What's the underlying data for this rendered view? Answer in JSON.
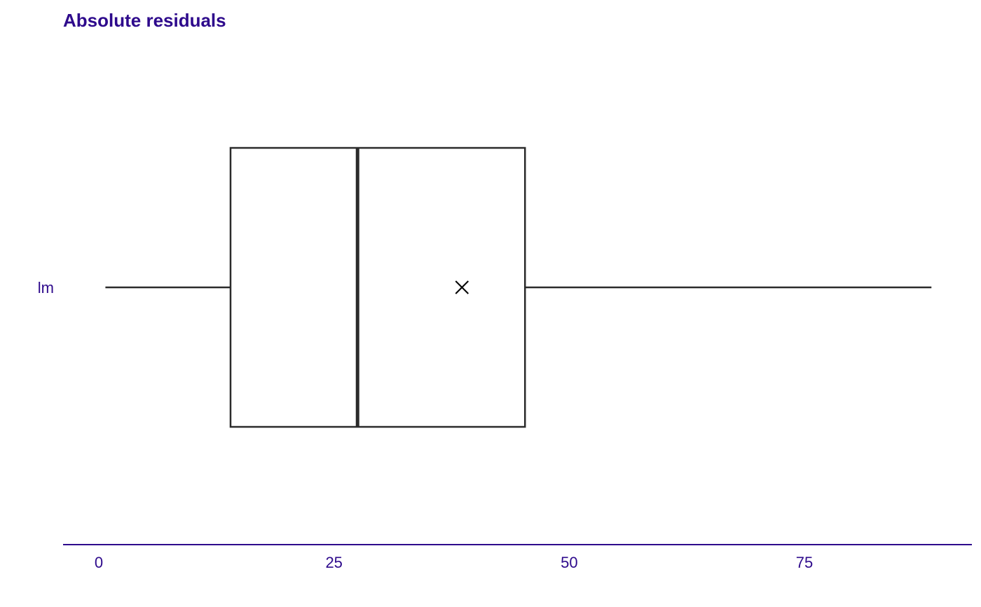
{
  "chart_data": {
    "type": "boxplot",
    "title": "Absolute residuals",
    "xlabel": "",
    "ylabel": "",
    "xlim": [
      -3.8,
      92.8
    ],
    "xticks": [
      "0",
      "25",
      "50",
      "75"
    ],
    "xtick_values": [
      0,
      25,
      50,
      75
    ],
    "grid": false,
    "series": [
      {
        "name": "lm",
        "min": 0.7,
        "q1": 14,
        "median": 27.5,
        "q3": 45.3,
        "max": 88.5,
        "mean": 38.6
      }
    ],
    "colors": {
      "text": "#2e0a8c",
      "axis": "#2e0a8c",
      "box": "#2b2b2b",
      "mean_marker": "#000000"
    }
  }
}
